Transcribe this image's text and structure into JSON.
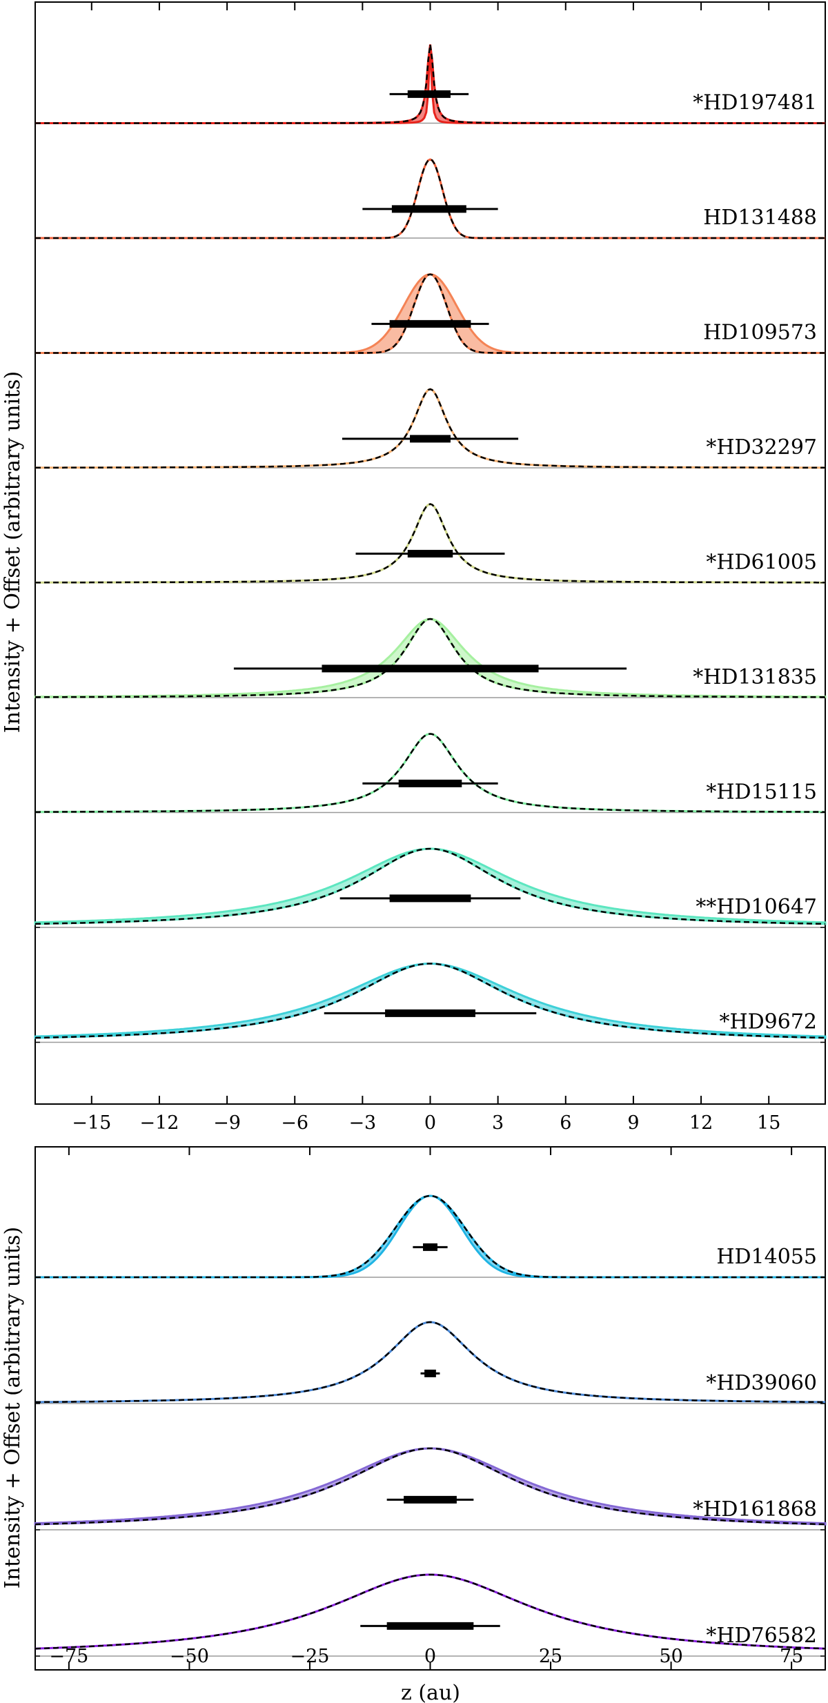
{
  "chart_data": [
    {
      "type": "line",
      "xlabel": "",
      "ylabel": "Intensity + Offset (arbitrary units)",
      "xlim": [
        -17.5,
        17.5
      ],
      "xticks": [
        -15,
        -12,
        -9,
        -6,
        -3,
        0,
        3,
        6,
        9,
        12,
        15
      ],
      "tick_labels": [
        "−15",
        "−12",
        "−9",
        "−6",
        "−3",
        "0",
        "3",
        "6",
        "9",
        "12",
        "15"
      ],
      "model_line_style": "black dashed",
      "series": [
        {
          "name": "*HD197481",
          "color": "#e8231c",
          "fwhm": 0.35,
          "profile": "lorentz",
          "band_width": 0.4,
          "err_inner": [
            -1.0,
            0.9
          ],
          "err_outer": [
            -1.8,
            1.7
          ],
          "label": "*HD197481"
        },
        {
          "name": "HD131488",
          "color": "#f2603a",
          "fwhm": 1.3,
          "profile": "gauss",
          "band_width": 1.0,
          "err_inner": [
            -1.7,
            1.6
          ],
          "err_outer": [
            -3.0,
            3.0
          ],
          "label": "HD131488"
        },
        {
          "name": "HD109573",
          "color": "#f48355",
          "fwhm": 1.7,
          "profile": "gauss",
          "band_width": 1.6,
          "err_inner": [
            -1.8,
            1.8
          ],
          "err_outer": [
            -2.6,
            2.6
          ],
          "label": "HD109573"
        },
        {
          "name": "*HD32297",
          "color": "#f6b273",
          "fwhm": 1.8,
          "profile": "lorentz",
          "band_width": 1.0,
          "err_inner": [
            -0.9,
            0.9
          ],
          "err_outer": [
            -3.9,
            3.9
          ],
          "label": "*HD32297"
        },
        {
          "name": "*HD61005",
          "color": "#d2da8c",
          "fwhm": 1.9,
          "profile": "lorentz",
          "band_width": 1.0,
          "err_inner": [
            -1.0,
            1.0
          ],
          "err_outer": [
            -3.3,
            3.3
          ],
          "label": "*HD61005"
        },
        {
          "name": "*HD131835",
          "color": "#a6f0a0",
          "fwhm": 2.8,
          "profile": "lorentz",
          "band_width": 1.35,
          "err_inner": [
            -4.8,
            4.8
          ],
          "err_outer": [
            -8.7,
            8.7
          ],
          "label": "*HD131835"
        },
        {
          "name": "*HD15115",
          "color": "#80eea2",
          "fwhm": 3.0,
          "profile": "lorentz",
          "band_width": 1.0,
          "err_inner": [
            -1.4,
            1.4
          ],
          "err_outer": [
            -3.0,
            3.0
          ],
          "label": "*HD15115"
        },
        {
          "name": "**HD10647",
          "color": "#5ce6c0",
          "fwhm": 7.6,
          "profile": "lorentz",
          "band_width": 1.2,
          "err_inner": [
            -1.8,
            1.8
          ],
          "err_outer": [
            -4.0,
            4.0
          ],
          "label": "**HD10647"
        },
        {
          "name": "*HD9672",
          "color": "#3ed0d8",
          "fwhm": 8.6,
          "profile": "lorentz",
          "band_width": 1.15,
          "err_inner": [
            -2.0,
            2.0
          ],
          "err_outer": [
            -4.7,
            4.7
          ],
          "label": "*HD9672"
        }
      ]
    },
    {
      "type": "line",
      "xlabel": "z (au)",
      "ylabel": "Intensity + Offset (arbitrary units)",
      "xlim": [
        -82,
        82
      ],
      "xticks": [
        -75,
        -50,
        -25,
        0,
        25,
        50,
        75
      ],
      "tick_labels": [
        "−75",
        "−50",
        "−25",
        "0",
        "25",
        "50",
        "75"
      ],
      "model_line_style": "black dashed",
      "series": [
        {
          "name": "HD14055",
          "color": "#1fb4e4",
          "fwhm": 17.0,
          "profile": "gauss",
          "band_width": 0.9,
          "err_inner": [
            -1.5,
            1.5
          ],
          "err_outer": [
            -3.6,
            3.6
          ],
          "label": "HD14055"
        },
        {
          "name": "*HD39060",
          "color": "#4a88d6",
          "fwhm": 22.0,
          "profile": "lorentz",
          "band_width": 1.0,
          "err_inner": [
            -1.2,
            1.2
          ],
          "err_outer": [
            -2.0,
            2.0
          ],
          "label": "*HD39060"
        },
        {
          "name": "*HD161868",
          "color": "#8468d4",
          "fwhm": 44.0,
          "profile": "lorentz",
          "band_width": 1.1,
          "err_inner": [
            -5.5,
            5.5
          ],
          "err_outer": [
            -9.0,
            9.0
          ],
          "label": "*HD161868"
        },
        {
          "name": "*HD76582",
          "color": "#8a1ee0",
          "fwhm": 52.0,
          "profile": "lorentz",
          "band_width": 1.0,
          "err_inner": [
            -9.0,
            9.0
          ],
          "err_outer": [
            -14.5,
            14.5
          ],
          "label": "*HD76582"
        }
      ]
    }
  ]
}
